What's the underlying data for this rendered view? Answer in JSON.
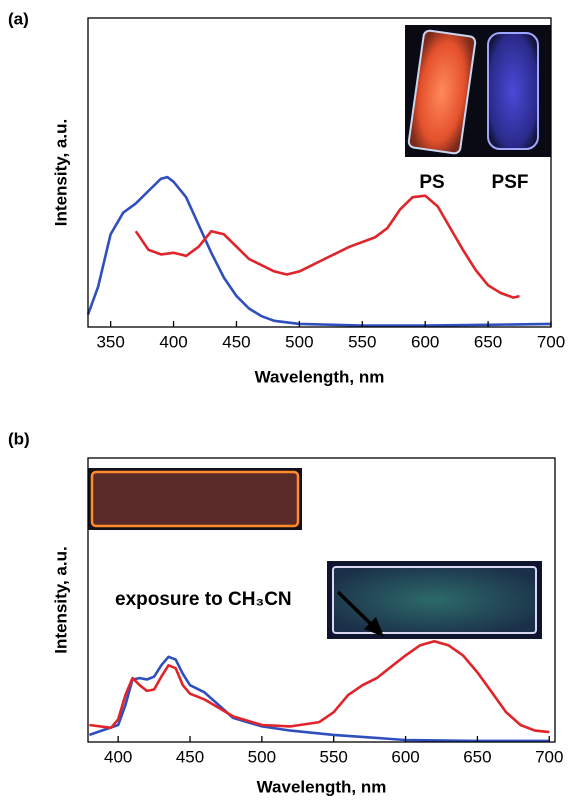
{
  "chart_data": [
    {
      "type": "line",
      "panel_label": "(a)",
      "x_label": "Wavelength, nm",
      "y_label": "Intensity, a.u.",
      "xlim": [
        332,
        700
      ],
      "xticks": [
        350,
        400,
        450,
        500,
        550,
        600,
        650,
        700
      ],
      "ylim": [
        0,
        1
      ],
      "annotations": [
        "PS",
        "PSF"
      ],
      "series": [
        {
          "color": "#2f4fbf",
          "x": [
            332,
            340,
            350,
            360,
            370,
            380,
            390,
            395,
            400,
            410,
            420,
            430,
            440,
            450,
            460,
            470,
            480,
            500,
            550,
            600,
            650,
            700
          ],
          "values": [
            0.04,
            0.13,
            0.3,
            0.37,
            0.4,
            0.44,
            0.48,
            0.485,
            0.47,
            0.42,
            0.33,
            0.24,
            0.16,
            0.1,
            0.06,
            0.035,
            0.02,
            0.01,
            0.005,
            0.005,
            0.007,
            0.01
          ]
        },
        {
          "color": "#e0242a",
          "x": [
            370,
            380,
            390,
            400,
            410,
            420,
            430,
            440,
            450,
            460,
            470,
            480,
            490,
            500,
            520,
            540,
            560,
            570,
            580,
            590,
            600,
            610,
            620,
            630,
            640,
            650,
            660,
            670,
            675
          ],
          "values": [
            0.31,
            0.25,
            0.235,
            0.24,
            0.23,
            0.26,
            0.31,
            0.3,
            0.26,
            0.22,
            0.2,
            0.18,
            0.17,
            0.18,
            0.22,
            0.26,
            0.29,
            0.32,
            0.38,
            0.42,
            0.425,
            0.39,
            0.32,
            0.25,
            0.185,
            0.135,
            0.11,
            0.095,
            0.1
          ]
        }
      ]
    },
    {
      "type": "line",
      "panel_label": "(b)",
      "x_label": "Wavelength, nm",
      "y_label": "Intensity, a.u.",
      "xlim": [
        379,
        704
      ],
      "xticks": [
        400,
        450,
        500,
        550,
        600,
        650,
        700
      ],
      "ylim": [
        0,
        1
      ],
      "annotations": [
        "exposure to CH₃CN"
      ],
      "series": [
        {
          "color": "#2f4fbf",
          "x": [
            380,
            400,
            405,
            410,
            415,
            420,
            425,
            430,
            435,
            440,
            445,
            450,
            460,
            470,
            480,
            500,
            520,
            550,
            600,
            650,
            700
          ],
          "values": [
            0.025,
            0.06,
            0.13,
            0.22,
            0.225,
            0.22,
            0.23,
            0.27,
            0.3,
            0.29,
            0.24,
            0.2,
            0.175,
            0.13,
            0.085,
            0.055,
            0.04,
            0.025,
            0.007,
            0.004,
            0.004
          ]
        },
        {
          "color": "#e0242a",
          "x": [
            380,
            395,
            400,
            405,
            410,
            415,
            420,
            425,
            430,
            435,
            440,
            445,
            450,
            460,
            470,
            480,
            500,
            520,
            540,
            550,
            560,
            570,
            580,
            590,
            600,
            610,
            620,
            630,
            640,
            650,
            660,
            670,
            680,
            690,
            700
          ],
          "values": [
            0.06,
            0.05,
            0.08,
            0.165,
            0.225,
            0.2,
            0.18,
            0.185,
            0.23,
            0.27,
            0.26,
            0.2,
            0.17,
            0.15,
            0.12,
            0.09,
            0.06,
            0.055,
            0.07,
            0.105,
            0.165,
            0.2,
            0.225,
            0.265,
            0.305,
            0.34,
            0.355,
            0.34,
            0.305,
            0.245,
            0.175,
            0.105,
            0.06,
            0.04,
            0.035
          ]
        }
      ]
    }
  ]
}
